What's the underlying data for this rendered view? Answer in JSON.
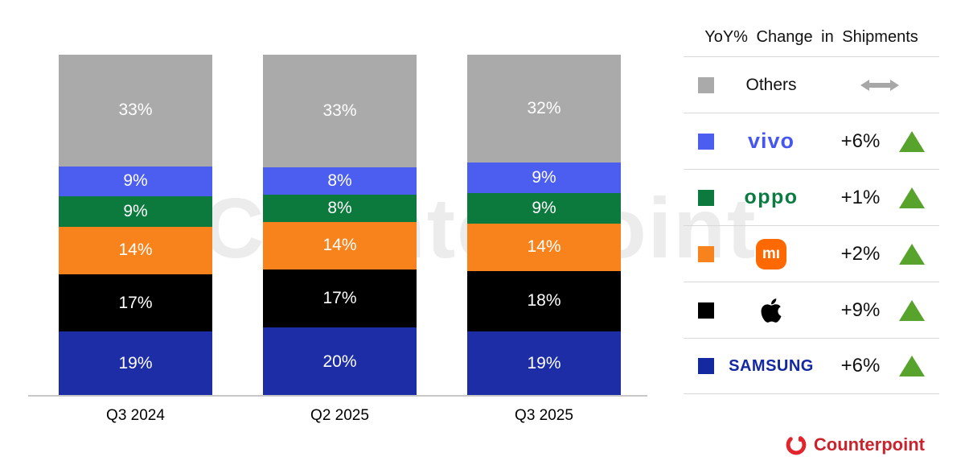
{
  "chart_data": {
    "type": "bar",
    "stacked": true,
    "title": "",
    "categories": [
      "Q3 2024",
      "Q2 2025",
      "Q3 2025"
    ],
    "series": [
      {
        "name": "Samsung",
        "color": "#1C2DA6",
        "values": [
          19,
          20,
          19
        ]
      },
      {
        "name": "Apple",
        "color": "#000000",
        "values": [
          17,
          17,
          18
        ]
      },
      {
        "name": "Xiaomi",
        "color": "#F8821B",
        "values": [
          14,
          14,
          14
        ]
      },
      {
        "name": "OPPO",
        "color": "#0B7A3C",
        "values": [
          9,
          8,
          9
        ]
      },
      {
        "name": "vivo",
        "color": "#4C5EEF",
        "values": [
          9,
          8,
          9
        ]
      },
      {
        "name": "Others",
        "color": "#ABAAAB",
        "values": [
          33,
          33,
          32
        ]
      }
    ],
    "value_suffix": "%",
    "ylim": [
      0,
      100
    ],
    "grid": false,
    "legend_position": "right"
  },
  "legend": {
    "title": "YoY% Change in Shipments",
    "rows": [
      {
        "name": "Others",
        "swatch": "#ABAAAB",
        "change": "",
        "trend": "flat"
      },
      {
        "name": "vivo",
        "swatch": "#4C5EEF",
        "change": "+6%",
        "trend": "up"
      },
      {
        "name": "OPPO",
        "swatch": "#0B7A3C",
        "change": "+1%",
        "trend": "up"
      },
      {
        "name": "Xiaomi",
        "swatch": "#F8821B",
        "change": "+2%",
        "trend": "up"
      },
      {
        "name": "Apple",
        "swatch": "#000000",
        "change": "+9%",
        "trend": "up"
      },
      {
        "name": "Samsung",
        "swatch": "#1428A0",
        "change": "+6%",
        "trend": "up"
      }
    ]
  },
  "logos": {
    "others": "Others",
    "vivo": "vivo",
    "oppo": "oppo",
    "xiaomi_mi": "mı",
    "samsung": "SAMSUNG"
  },
  "colors": {
    "up_triangle": "#58A32C",
    "flat_arrow": "#A7A7A7",
    "separator": "#D9D9D9",
    "baseline": "#C7C7C7",
    "counterpoint_red": "#E2242C",
    "counterpoint_text": "#C9242E",
    "watermark_gray": "#ECECEC"
  },
  "watermark": "Counterpoint",
  "footer": {
    "brand": "Counterpoint"
  }
}
